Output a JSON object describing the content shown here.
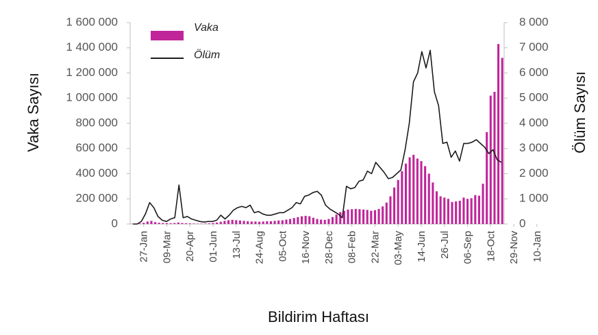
{
  "chart_data": {
    "type": "bar",
    "ylabel": "Vaka Sayısı",
    "y2label": "Ölüm Sayısı",
    "xlabel": "Bildirim Haftası",
    "ylim": [
      0,
      1600000
    ],
    "y2lim": [
      0,
      8000
    ],
    "y_ticks": [
      "0",
      "200 000",
      "400 000",
      "600 000",
      "800 000",
      "1 000 000",
      "1 200 000",
      "1 400 000",
      "1 600 000"
    ],
    "y2_ticks": [
      "0",
      "1 000",
      "2 000",
      "3 000",
      "4 000",
      "5 000",
      "6 000",
      "7 000",
      "8 000"
    ],
    "x_tick_labels": [
      "27-Jan",
      "09-Mar",
      "20-Apr",
      "01-Jun",
      "13-Jul",
      "24-Aug",
      "05-Oct",
      "16-Nov",
      "28-Dec",
      "08-Feb",
      "22-Mar",
      "03-May",
      "14-Jun",
      "26-Jul",
      "06-Sep",
      "18-Oct",
      "29-Nov",
      "10-Jan"
    ],
    "x_tick_every": 6,
    "x_tick_offset": 3,
    "legend": [
      "Vaka",
      "Ölüm"
    ],
    "legend_position": "top-left",
    "colors": {
      "vaka": "#c0259a",
      "olum": "#1a1a1a",
      "axis": "#bfbfbf"
    },
    "series": [
      {
        "name": "Vaka",
        "type": "bar",
        "axis": "left",
        "values": [
          2000,
          3000,
          5000,
          10000,
          20000,
          25000,
          15000,
          10000,
          8000,
          7000,
          6000,
          8000,
          12000,
          8000,
          6000,
          5000,
          4000,
          3000,
          3000,
          4000,
          5000,
          8000,
          12000,
          18000,
          25000,
          30000,
          33000,
          30000,
          28000,
          25000,
          22000,
          20000,
          20000,
          18000,
          20000,
          22000,
          22000,
          25000,
          28000,
          30000,
          35000,
          40000,
          48000,
          55000,
          62000,
          65000,
          62000,
          50000,
          40000,
          35000,
          33000,
          40000,
          55000,
          75000,
          95000,
          105000,
          115000,
          118000,
          120000,
          118000,
          115000,
          112000,
          105000,
          110000,
          120000,
          140000,
          170000,
          220000,
          290000,
          350000,
          420000,
          480000,
          530000,
          550000,
          520000,
          500000,
          460000,
          400000,
          330000,
          260000,
          220000,
          210000,
          200000,
          175000,
          180000,
          185000,
          210000,
          200000,
          205000,
          230000,
          225000,
          320000,
          730000,
          1020000,
          1050000,
          1430000,
          1320000
        ]
      },
      {
        "name": "Ölüm",
        "type": "line",
        "axis": "right",
        "values": [
          0,
          0,
          100,
          400,
          850,
          650,
          300,
          150,
          100,
          200,
          250,
          1550,
          250,
          300,
          200,
          150,
          100,
          80,
          100,
          100,
          150,
          350,
          200,
          350,
          550,
          650,
          700,
          650,
          750,
          450,
          500,
          400,
          350,
          350,
          400,
          450,
          450,
          550,
          650,
          850,
          800,
          1100,
          1150,
          1250,
          1300,
          1150,
          750,
          600,
          500,
          400,
          250,
          1500,
          1400,
          1450,
          1700,
          1750,
          2100,
          2000,
          2450,
          2250,
          2050,
          1800,
          1850,
          2000,
          2150,
          2950,
          4000,
          5650,
          6000,
          6850,
          6200,
          6900,
          5250,
          4700,
          3200,
          3250,
          2650,
          2900,
          2500,
          3200,
          3200,
          3250,
          3350,
          3200,
          3050,
          2800,
          2950,
          2550,
          2450
        ]
      }
    ]
  }
}
